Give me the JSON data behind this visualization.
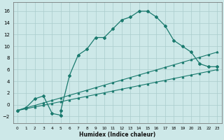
{
  "title": "",
  "xlabel": "Humidex (Indice chaleur)",
  "background_color": "#cde8e8",
  "grid_color": "#aacccc",
  "line_color": "#1a7a6e",
  "xlim": [
    -0.5,
    23.5
  ],
  "ylim": [
    -3.2,
    17.5
  ],
  "xticks": [
    0,
    1,
    2,
    3,
    4,
    5,
    6,
    7,
    8,
    9,
    10,
    11,
    12,
    13,
    14,
    15,
    16,
    17,
    18,
    19,
    20,
    21,
    22,
    23
  ],
  "yticks": [
    -2,
    0,
    2,
    4,
    6,
    8,
    10,
    12,
    14,
    16
  ],
  "curve1_x": [
    0,
    1,
    2,
    3,
    4,
    5,
    5,
    6,
    7,
    8,
    9,
    10,
    11,
    12,
    13,
    14,
    15,
    16,
    17,
    18,
    19,
    20,
    21,
    22,
    23
  ],
  "curve1_y": [
    -1.0,
    -0.5,
    1.0,
    1.5,
    -1.5,
    -1.8,
    -1.0,
    5.0,
    8.5,
    9.5,
    11.5,
    11.5,
    13.0,
    14.5,
    15.0,
    16.0,
    16.0,
    15.0,
    13.5,
    11.0,
    10.0,
    9.0,
    7.0,
    6.5,
    6.5
  ],
  "line1_x": [
    0,
    1,
    2,
    3,
    4,
    5,
    6,
    7,
    8,
    9,
    10,
    11,
    12,
    13,
    14,
    15,
    16,
    17,
    18,
    19,
    20,
    21,
    22,
    23
  ],
  "line1_y": [
    -1.0,
    -0.696,
    -0.391,
    -0.087,
    0.217,
    0.522,
    0.826,
    1.13,
    1.435,
    1.739,
    2.043,
    2.348,
    2.652,
    2.957,
    3.261,
    3.565,
    3.87,
    4.174,
    4.478,
    4.783,
    5.087,
    5.391,
    5.696,
    6.0
  ],
  "line2_x": [
    0,
    1,
    2,
    3,
    4,
    5,
    6,
    7,
    8,
    9,
    10,
    11,
    12,
    13,
    14,
    15,
    16,
    17,
    18,
    19,
    20,
    21,
    22,
    23
  ],
  "line2_y": [
    -1.0,
    -0.565,
    -0.13,
    0.304,
    0.739,
    1.174,
    1.609,
    2.043,
    2.478,
    2.913,
    3.348,
    3.783,
    4.217,
    4.652,
    5.087,
    5.522,
    5.957,
    6.391,
    6.826,
    7.261,
    7.696,
    8.13,
    8.565,
    9.0
  ]
}
